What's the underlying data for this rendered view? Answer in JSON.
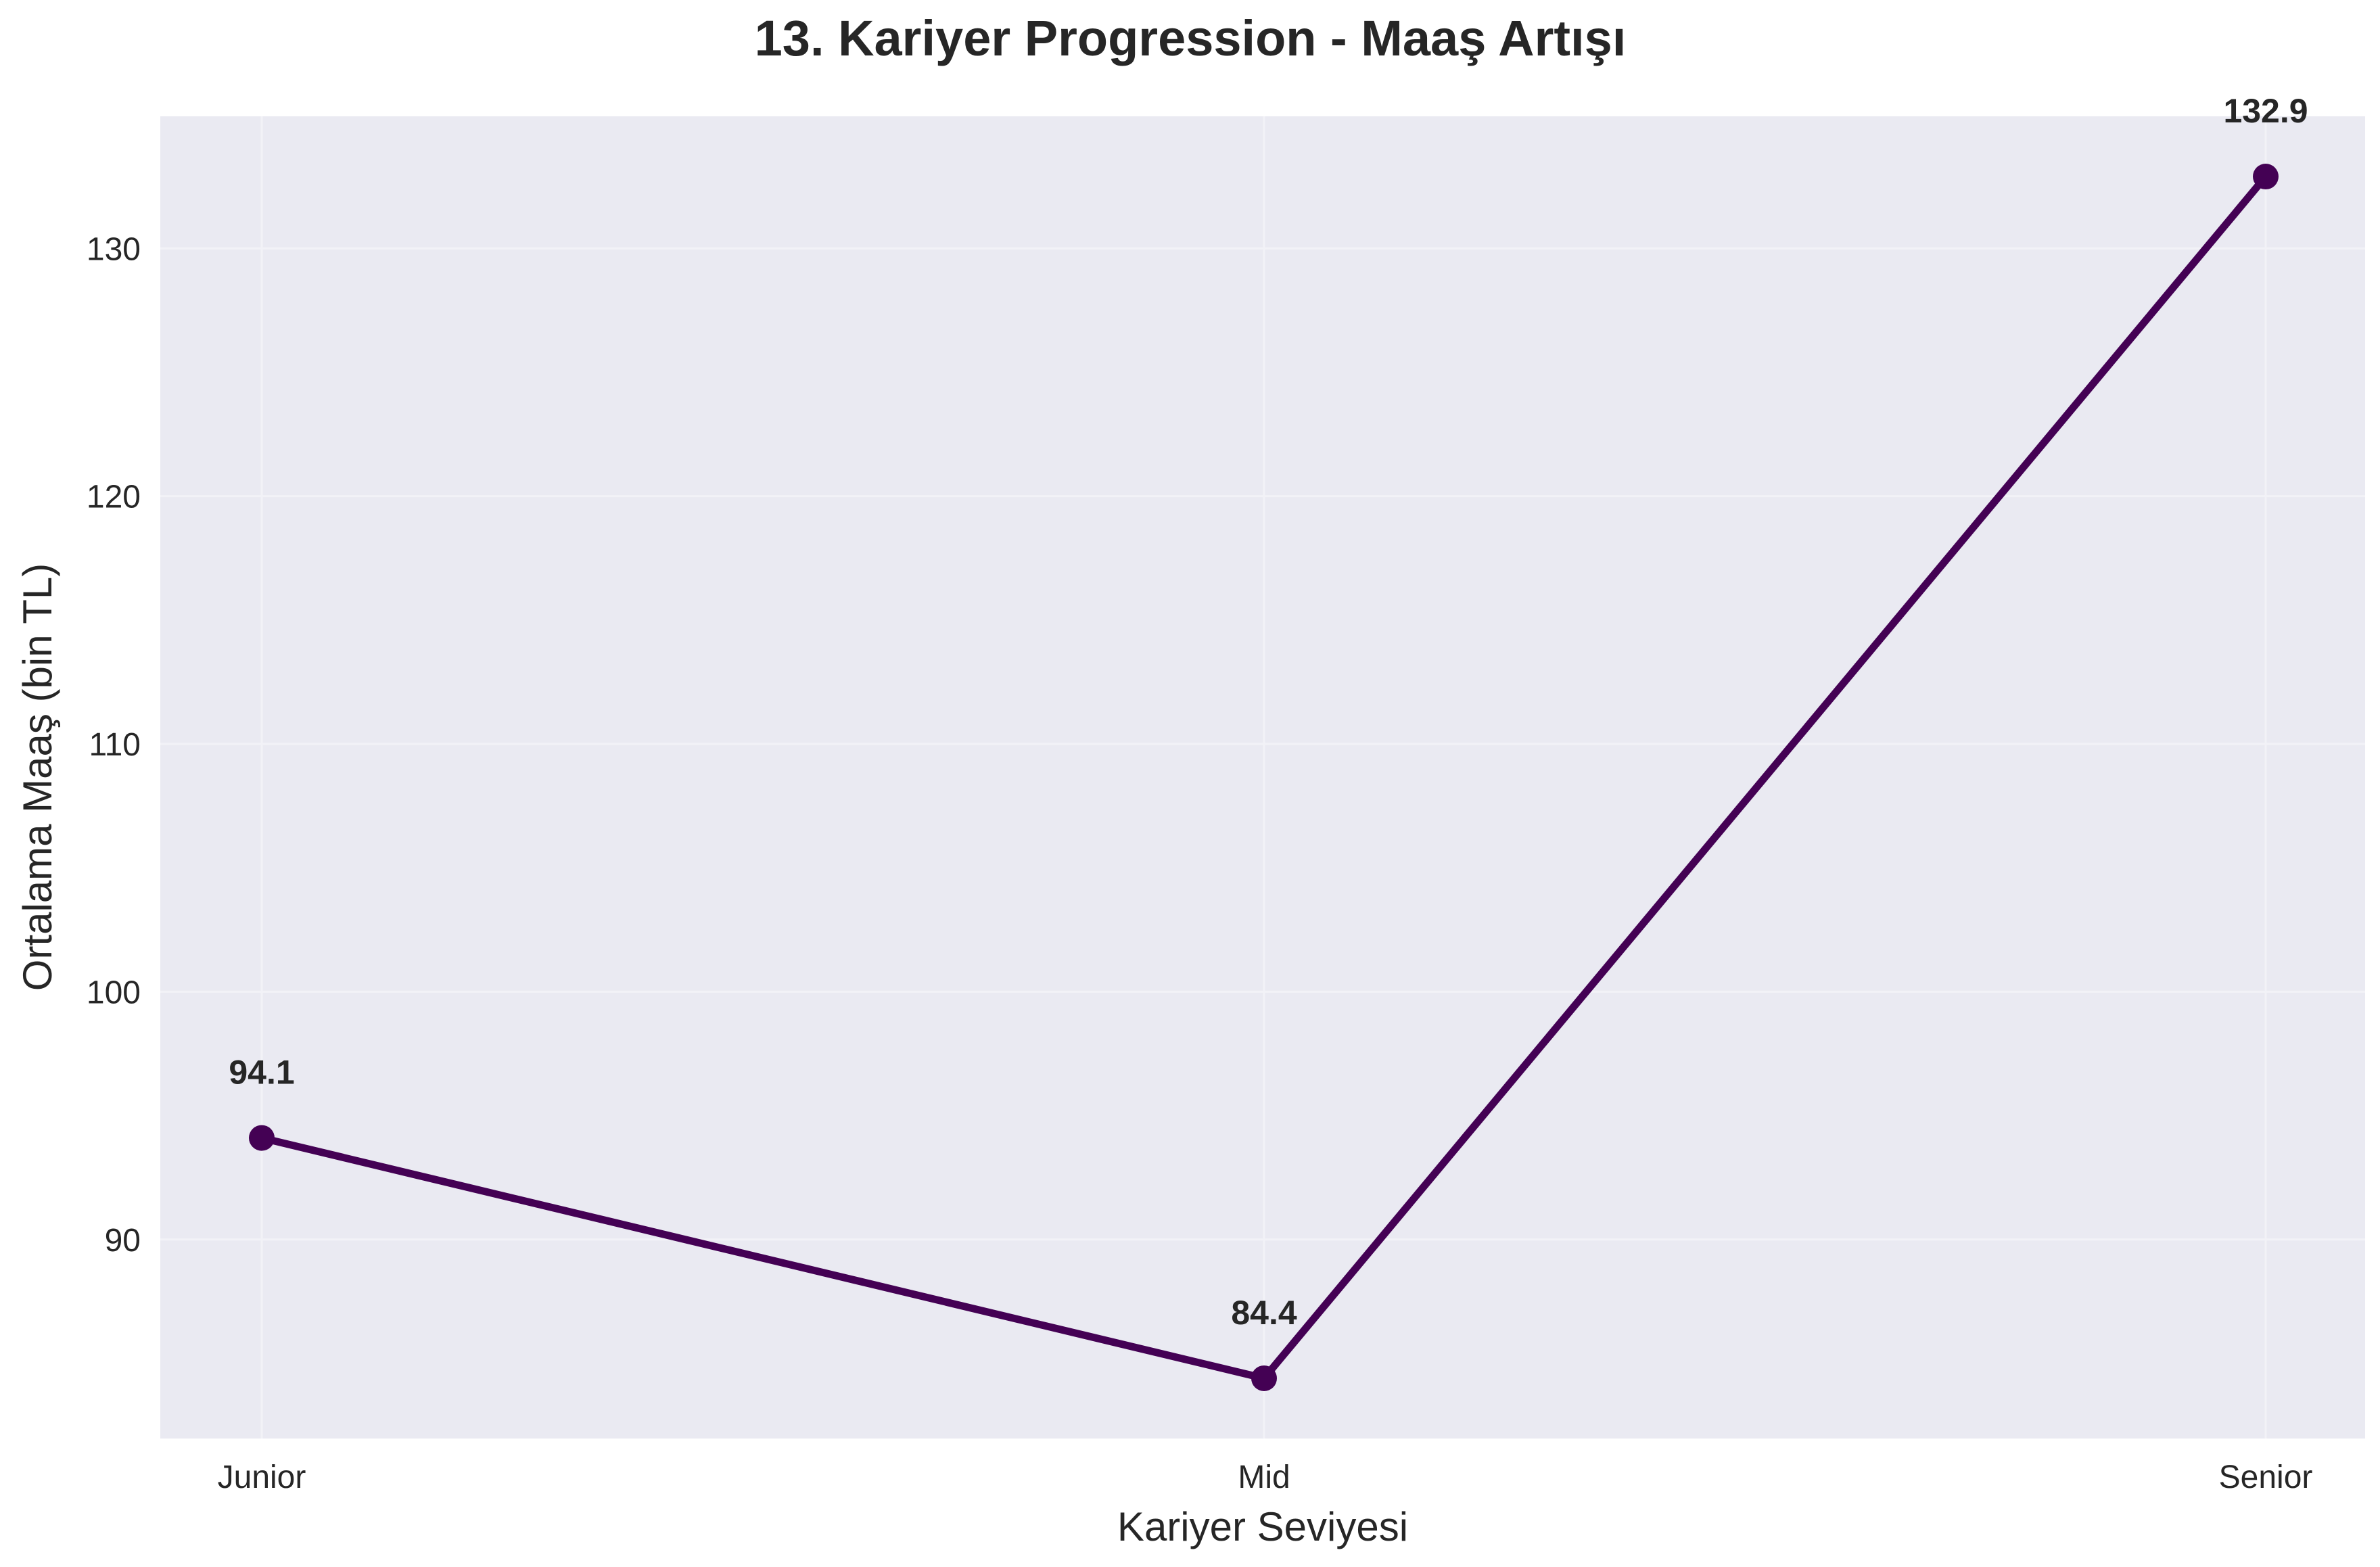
{
  "chart_data": {
    "type": "line",
    "title": "13. Kariyer Progression - Maaş Artışı",
    "xlabel": "Kariyer Seviyesi",
    "ylabel": "Ortalama Maaş (bin TL)",
    "categories": [
      "Junior",
      "Mid",
      "Senior"
    ],
    "series": [
      {
        "values": [
          94.1,
          84.4,
          132.9
        ]
      }
    ],
    "data_labels": [
      "94.1",
      "84.4",
      "132.9"
    ],
    "ylim": [
      81.97,
      135.33
    ],
    "yticks": [
      90,
      100,
      110,
      120,
      130
    ],
    "grid": true,
    "colors": {
      "plot_background": "#eaeaf2",
      "line": "#440154",
      "grid": "#f2f2f7"
    }
  }
}
